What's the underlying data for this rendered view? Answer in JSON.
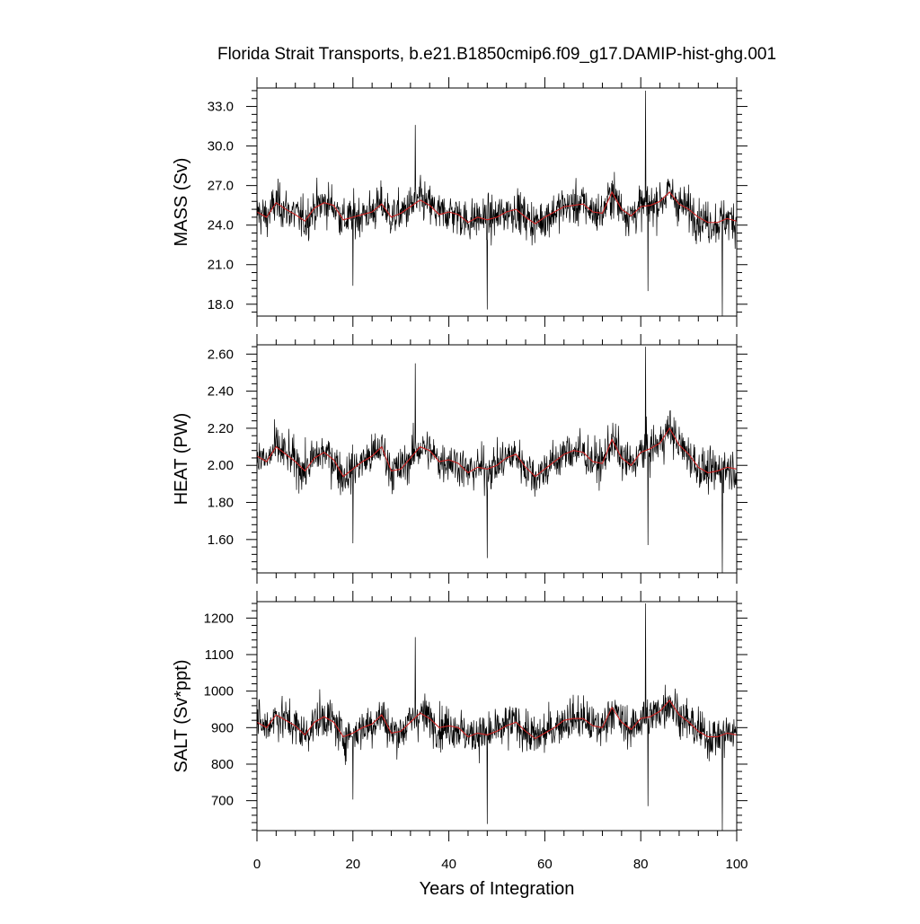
{
  "chart_data": {
    "type": "line",
    "title": "Florida Strait Transports, b.e21.B1850cmip6.f09_g17.DAMIP-hist-ghg.001",
    "xlabel": "Years of Integration",
    "xlim": [
      0,
      100
    ],
    "x_ticks": [
      0,
      20,
      40,
      60,
      80,
      100
    ],
    "x_tick_labels": [
      "0",
      "20",
      "40",
      "60",
      "80",
      "100"
    ],
    "series_colors": {
      "monthly": "#000000",
      "smoothed": "#cc2222"
    },
    "panels": [
      {
        "name": "mass",
        "ylabel": "MASS (Sv)",
        "ylim": [
          17.1,
          34.4
        ],
        "y_ticks": [
          18.0,
          21.0,
          24.0,
          27.0,
          30.0,
          33.0
        ],
        "y_tick_labels": [
          "18.0",
          "21.0",
          "24.0",
          "27.0",
          "30.0",
          "33.0"
        ],
        "smoothed": {
          "x": [
            0,
            2,
            4,
            6,
            8,
            10,
            12,
            14,
            16,
            18,
            20,
            22,
            24,
            26,
            28,
            30,
            32,
            34,
            36,
            38,
            40,
            42,
            44,
            46,
            48,
            50,
            52,
            54,
            56,
            58,
            60,
            62,
            64,
            66,
            68,
            70,
            72,
            74,
            76,
            78,
            80,
            82,
            84,
            86,
            88,
            90,
            92,
            94,
            96,
            98,
            100
          ],
          "y": [
            25.0,
            24.6,
            25.7,
            25.2,
            24.8,
            24.3,
            25.3,
            25.7,
            25.5,
            24.4,
            24.6,
            24.8,
            25.0,
            25.6,
            24.6,
            24.9,
            25.4,
            25.9,
            25.5,
            24.8,
            25.0,
            24.8,
            24.2,
            24.6,
            24.4,
            24.6,
            25.0,
            25.2,
            24.6,
            24.1,
            24.6,
            25.0,
            25.4,
            25.5,
            25.6,
            25.0,
            24.9,
            26.5,
            25.2,
            24.7,
            25.4,
            25.5,
            25.8,
            26.5,
            25.6,
            25.2,
            24.6,
            24.2,
            24.2,
            24.5,
            24.3
          ]
        },
        "spikes": [
          [
            33,
            31.6
          ],
          [
            48,
            17.6
          ],
          [
            81,
            34.2
          ],
          [
            81.5,
            19.0
          ],
          [
            97,
            17.1
          ],
          [
            20,
            19.4
          ]
        ]
      },
      {
        "name": "heat",
        "ylabel": "HEAT (PW)",
        "ylim": [
          1.42,
          2.65
        ],
        "y_ticks": [
          1.6,
          1.8,
          2.0,
          2.2,
          2.4,
          2.6
        ],
        "y_tick_labels": [
          "1.60",
          "1.80",
          "2.00",
          "2.20",
          "2.40",
          "2.60"
        ],
        "smoothed": {
          "x": [
            0,
            2,
            4,
            6,
            8,
            10,
            12,
            14,
            16,
            18,
            20,
            22,
            24,
            26,
            28,
            30,
            32,
            34,
            36,
            38,
            40,
            42,
            44,
            46,
            48,
            50,
            52,
            54,
            56,
            58,
            60,
            62,
            64,
            66,
            68,
            70,
            72,
            74,
            76,
            78,
            80,
            82,
            84,
            86,
            88,
            90,
            92,
            94,
            96,
            98,
            100
          ],
          "y": [
            2.05,
            2.02,
            2.1,
            2.06,
            2.02,
            1.97,
            2.04,
            2.07,
            2.03,
            1.94,
            1.98,
            2.02,
            2.05,
            2.1,
            1.97,
            1.98,
            2.04,
            2.1,
            2.08,
            2.02,
            2.03,
            2.01,
            1.96,
            1.99,
            1.98,
            2.0,
            2.04,
            2.06,
            1.99,
            1.94,
            1.98,
            2.02,
            2.06,
            2.08,
            2.07,
            2.02,
            2.01,
            2.14,
            2.04,
            2.0,
            2.07,
            2.09,
            2.12,
            2.2,
            2.11,
            2.06,
            1.99,
            1.96,
            1.97,
            1.99,
            1.98
          ]
        },
        "spikes": [
          [
            33,
            2.55
          ],
          [
            48,
            1.5
          ],
          [
            81,
            2.64
          ],
          [
            81.5,
            1.57
          ],
          [
            97,
            1.42
          ],
          [
            20,
            1.58
          ]
        ]
      },
      {
        "name": "salt",
        "ylabel": "SALT (Sv*ppt)",
        "ylim": [
          618,
          1245
        ],
        "y_ticks": [
          700,
          800,
          900,
          1000,
          1100,
          1200
        ],
        "y_tick_labels": [
          "700",
          "800",
          "900",
          "1000",
          "1100",
          "1200"
        ],
        "smoothed": {
          "x": [
            0,
            2,
            4,
            6,
            8,
            10,
            12,
            14,
            16,
            18,
            20,
            22,
            24,
            26,
            28,
            30,
            32,
            34,
            36,
            38,
            40,
            42,
            44,
            46,
            48,
            50,
            52,
            54,
            56,
            58,
            60,
            62,
            64,
            66,
            68,
            70,
            72,
            74,
            76,
            78,
            80,
            82,
            84,
            86,
            88,
            90,
            92,
            94,
            96,
            98,
            100
          ],
          "y": [
            915,
            900,
            935,
            920,
            905,
            880,
            915,
            930,
            915,
            875,
            885,
            900,
            910,
            935,
            885,
            890,
            915,
            940,
            925,
            900,
            905,
            900,
            875,
            885,
            880,
            890,
            905,
            915,
            890,
            870,
            885,
            900,
            920,
            925,
            925,
            905,
            900,
            955,
            915,
            895,
            925,
            930,
            945,
            975,
            935,
            915,
            890,
            875,
            875,
            885,
            880
          ]
        },
        "spikes": [
          [
            33,
            1148
          ],
          [
            48,
            636
          ],
          [
            81,
            1240
          ],
          [
            81.5,
            685
          ],
          [
            97,
            618
          ],
          [
            20,
            703
          ]
        ]
      }
    ]
  }
}
